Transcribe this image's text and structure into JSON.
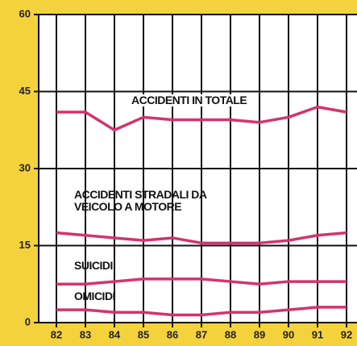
{
  "chart_data": {
    "type": "line",
    "categories": [
      "82",
      "83",
      "84",
      "85",
      "86",
      "87",
      "88",
      "89",
      "90",
      "91",
      "92"
    ],
    "series": [
      {
        "name": "ACCIDENTI IN TOTALE",
        "color": "#d4336e",
        "values": [
          41,
          41,
          37.5,
          40,
          39.5,
          39.5,
          39.5,
          39,
          40,
          42,
          41
        ]
      },
      {
        "name": "ACCIDENTI STRADALI DA VEICOLO A MOTORE",
        "color": "#d4336e",
        "values": [
          17.5,
          17,
          16.5,
          16,
          16.5,
          15.5,
          15.5,
          15.5,
          16,
          17,
          17.5
        ]
      },
      {
        "name": "SUICIDI",
        "color": "#d4336e",
        "values": [
          7.5,
          7.5,
          8,
          8.5,
          8.5,
          8.5,
          8,
          7.5,
          8,
          8,
          8
        ]
      },
      {
        "name": "OMICIDI",
        "color": "#d4336e",
        "values": [
          2.5,
          2.5,
          2,
          2,
          1.5,
          1.5,
          2,
          2,
          2.5,
          3,
          3
        ]
      }
    ],
    "ylim": [
      0,
      60
    ],
    "yticks": [
      0,
      15,
      30,
      45,
      60
    ],
    "grid": true,
    "legend": false
  }
}
